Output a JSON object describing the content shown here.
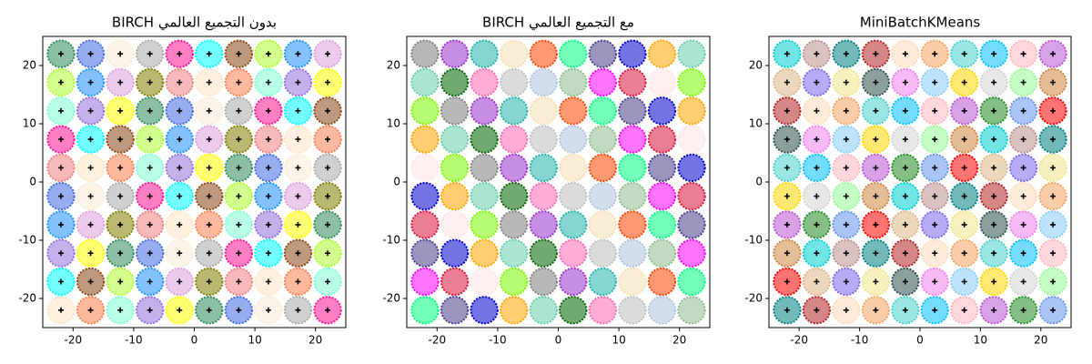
{
  "chart_data": [
    {
      "type": "scatter",
      "title": "BIRCH بدون التجميع العالمي",
      "grid_x": [
        -22,
        -17.11,
        -12.22,
        -7.33,
        -2.44,
        2.44,
        7.33,
        12.22,
        17.11,
        22
      ],
      "grid_y": [
        -22,
        -17.11,
        -12.22,
        -7.33,
        -2.44,
        2.44,
        7.33,
        12.22,
        17.11,
        22
      ],
      "colors": [
        "#ffe4c4",
        "#ff7f50",
        "#7fffd4",
        "#9370db",
        "#ffff00",
        "#2e8b57",
        "#4169e1",
        "#faebd7",
        "#a9a9a9",
        "#ff1493",
        "#00ffff",
        "#8b4513",
        "#adff2f",
        "#1e90ff",
        "#dda0dd",
        "#808000",
        "#f08080"
      ],
      "show_centers": true,
      "xlim": [
        -25,
        25
      ],
      "ylim": [
        -25,
        25
      ],
      "xticks": [
        -20,
        -10,
        0,
        10,
        20
      ],
      "yticks": [
        -20,
        -10,
        0,
        10,
        20
      ]
    },
    {
      "type": "scatter",
      "title": "BIRCH مع التجميع العالمي",
      "grid_x": [
        -22,
        -17.11,
        -12.22,
        -7.33,
        -2.44,
        2.44,
        7.33,
        12.22,
        17.11,
        22
      ],
      "grid_y": [
        -22,
        -17.11,
        -12.22,
        -7.33,
        -2.44,
        2.44,
        7.33,
        12.22,
        17.11,
        22
      ],
      "colors": [
        "#00ff7f",
        "#483d8b",
        "#0000cd",
        "#ffa500",
        "#66cdaa",
        "#006400",
        "#ff69b4",
        "#c0c0c0",
        "#b0c4de",
        "#8fbc8f",
        "#ff00ff",
        "#dc143c",
        "#ffe4e1",
        "#7cfc00",
        "#808080",
        "#9932cc",
        "#20b2aa",
        "#f5deb3",
        "#ff4500"
      ],
      "show_centers": false,
      "xlim": [
        -25,
        25
      ],
      "ylim": [
        -25,
        25
      ],
      "xticks": [
        -20,
        -10,
        0,
        10,
        20
      ],
      "yticks": [
        -20,
        -10,
        0,
        10,
        20
      ]
    },
    {
      "type": "scatter",
      "title": "MiniBatchKMeans",
      "grid_x": [
        -22,
        -17.11,
        -12.22,
        -7.33,
        -2.44,
        2.44,
        7.33,
        12.22,
        17.11,
        22
      ],
      "grid_y": [
        -22,
        -17.11,
        -12.22,
        -7.33,
        -2.44,
        2.44,
        7.33,
        12.22,
        17.11,
        22
      ],
      "colors": [
        "#008080",
        "#b22222",
        "#ffdab9",
        "#f4a460",
        "#48d1cc",
        "#00bfff",
        "#ffb6c1",
        "#ba55d3",
        "#228b22",
        "#6495ed",
        "#ff0000",
        "#deb887",
        "#7b68ee",
        "#f0e68c",
        "#2f4f4f",
        "#ee82ee",
        "#87cefa",
        "#ffd700",
        "#d3d3d3",
        "#98fb98",
        "#cd853f",
        "#00ced1",
        "#bc8f8f"
      ],
      "show_centers": true,
      "xlim": [
        -25,
        25
      ],
      "ylim": [
        -25,
        25
      ],
      "xticks": [
        -20,
        -10,
        0,
        10,
        20
      ],
      "yticks": [
        -20,
        -10,
        0,
        10,
        20
      ]
    }
  ]
}
